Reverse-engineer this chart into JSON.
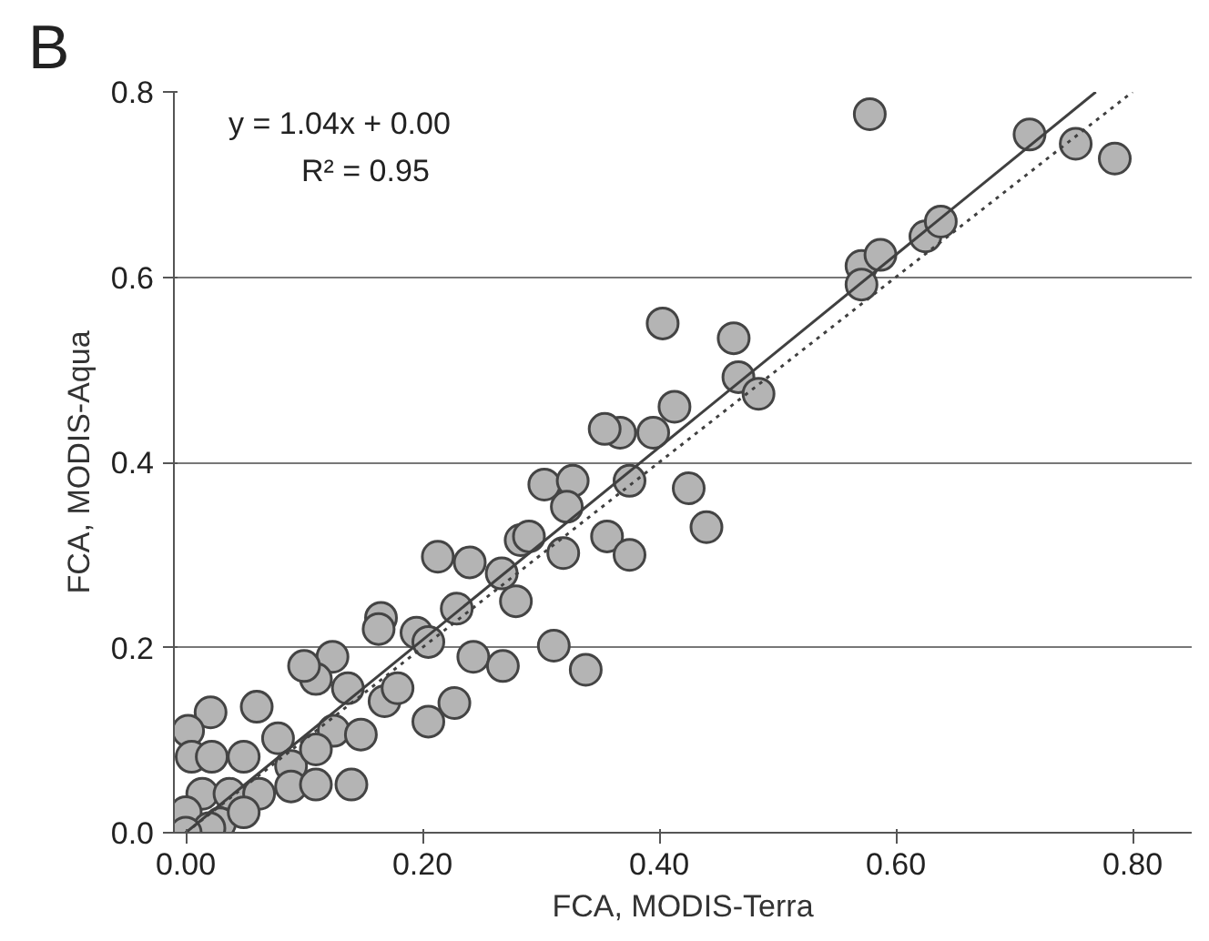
{
  "chart_data": {
    "type": "scatter",
    "xlabel": "FCA, MODIS-Terra",
    "ylabel": "FCA, MODIS-Aqua",
    "annotations": [
      "B",
      "y = 1.04x + 0.00",
      "R² = 0.95"
    ],
    "xlim": [
      -0.01,
      0.85
    ],
    "ylim": [
      0,
      0.8
    ],
    "xticks": [
      {
        "value": 0,
        "label": "0.00"
      },
      {
        "value": 0.2,
        "label": "0.20"
      },
      {
        "value": 0.4,
        "label": "0.40"
      },
      {
        "value": 0.6,
        "label": "0.60"
      },
      {
        "value": 0.8,
        "label": "0.80"
      }
    ],
    "yticks": [
      {
        "value": 0,
        "label": "0.0"
      },
      {
        "value": 0.2,
        "label": "0.2"
      },
      {
        "value": 0.4,
        "label": "0.4"
      },
      {
        "value": 0.6,
        "label": "0.6"
      },
      {
        "value": 0.8,
        "label": "0.8"
      }
    ],
    "grid": "y",
    "series": [
      {
        "marker": "circle",
        "color": "#b4b4b4",
        "x": [
          0.578,
          0.713,
          0.752,
          0.785,
          0.625,
          0.638,
          0.571,
          0.587,
          0.571,
          0.403,
          0.463,
          0.467,
          0.484,
          0.413,
          0.395,
          0.367,
          0.354,
          0.375,
          0.425,
          0.44,
          0.356,
          0.375,
          0.303,
          0.327,
          0.322,
          0.283,
          0.29,
          0.319,
          0.213,
          0.24,
          0.267,
          0.279,
          0.229,
          0.165,
          0.163,
          0.195,
          0.205,
          0.243,
          0.268,
          0.311,
          0.338,
          0.227,
          0.205,
          0.124,
          0.11,
          0.1,
          0.137,
          0.168,
          0.179,
          0.125,
          0.148,
          0.06,
          0.021,
          0.078,
          0.002,
          0.005,
          0.022,
          0.049,
          0.089,
          0.11,
          0.14,
          0.014,
          0.037,
          0.062,
          0.089,
          0.11,
          0.029,
          0.0,
          0.049,
          0.02,
          0.0
        ],
        "values": [
          0.776,
          0.754,
          0.744,
          0.728,
          0.644,
          0.66,
          0.612,
          0.624,
          0.592,
          0.55,
          0.534,
          0.492,
          0.474,
          0.46,
          0.432,
          0.432,
          0.436,
          0.38,
          0.372,
          0.33,
          0.32,
          0.3,
          0.376,
          0.38,
          0.352,
          0.316,
          0.32,
          0.302,
          0.298,
          0.292,
          0.28,
          0.25,
          0.242,
          0.232,
          0.22,
          0.216,
          0.206,
          0.19,
          0.18,
          0.202,
          0.176,
          0.14,
          0.12,
          0.19,
          0.166,
          0.18,
          0.156,
          0.142,
          0.156,
          0.11,
          0.106,
          0.136,
          0.13,
          0.102,
          0.11,
          0.082,
          0.082,
          0.082,
          0.072,
          0.09,
          0.052,
          0.042,
          0.042,
          0.042,
          0.05,
          0.052,
          0.01,
          0.022,
          0.022,
          0.005,
          0.0
        ]
      },
      {
        "type": "line",
        "color": "#404040",
        "line_style": "solid",
        "x": [
          0,
          0.769
        ],
        "values": [
          0,
          0.8
        ]
      },
      {
        "type": "line",
        "color": "#404040",
        "line_style": "dotted",
        "x": [
          0,
          0.8
        ],
        "values": [
          0,
          0.8
        ]
      }
    ]
  }
}
